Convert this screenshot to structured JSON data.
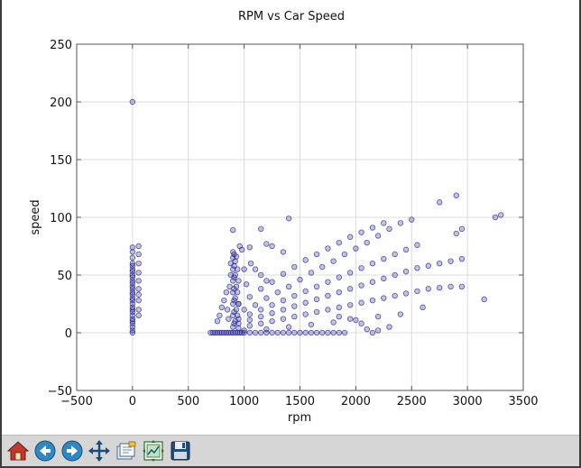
{
  "chart_data": {
    "type": "scatter",
    "title": "RPM vs Car Speed",
    "xlabel": "rpm",
    "ylabel": "speed",
    "xlim": [
      -500,
      3500
    ],
    "ylim": [
      -50,
      250
    ],
    "xticks": [
      -500,
      0,
      500,
      1000,
      1500,
      2000,
      2500,
      3000,
      3500
    ],
    "yticks": [
      -50,
      0,
      50,
      100,
      150,
      200,
      250
    ],
    "xtick_labels": [
      "−500",
      "0",
      "500",
      "1000",
      "1500",
      "2000",
      "2500",
      "3000",
      "3500"
    ],
    "ytick_labels": [
      "−50",
      "0",
      "50",
      "100",
      "150",
      "200",
      "250"
    ],
    "grid": true,
    "marker_color": "#3333cc",
    "marker_edge": "#1a1a66",
    "marker_alpha": 0.3,
    "series": [
      {
        "points": [
          [
            0,
            200
          ],
          [
            0,
            0
          ],
          [
            0,
            5
          ],
          [
            0,
            10
          ],
          [
            0,
            15
          ],
          [
            0,
            20
          ],
          [
            0,
            25
          ],
          [
            0,
            30
          ],
          [
            0,
            35
          ],
          [
            0,
            40
          ],
          [
            0,
            45
          ],
          [
            0,
            50
          ],
          [
            0,
            55
          ],
          [
            0,
            60
          ],
          [
            0,
            65
          ],
          [
            0,
            70
          ],
          [
            0,
            74
          ],
          [
            0,
            2
          ],
          [
            0,
            8
          ],
          [
            0,
            12
          ],
          [
            0,
            18
          ],
          [
            0,
            22
          ],
          [
            0,
            28
          ],
          [
            0,
            33
          ],
          [
            0,
            38
          ],
          [
            0,
            43
          ],
          [
            0,
            48
          ],
          [
            0,
            53
          ],
          [
            0,
            58
          ],
          [
            55,
            75
          ],
          [
            55,
            68
          ],
          [
            55,
            60
          ],
          [
            55,
            52
          ],
          [
            55,
            45
          ],
          [
            55,
            38
          ],
          [
            55,
            33
          ],
          [
            55,
            28
          ],
          [
            55,
            20
          ],
          [
            55,
            15
          ],
          [
            700,
            0
          ],
          [
            720,
            0
          ],
          [
            740,
            0
          ],
          [
            760,
            0
          ],
          [
            780,
            0
          ],
          [
            800,
            0
          ],
          [
            820,
            0
          ],
          [
            840,
            0
          ],
          [
            860,
            0
          ],
          [
            880,
            0
          ],
          [
            900,
            0
          ],
          [
            920,
            0
          ],
          [
            940,
            0
          ],
          [
            960,
            0
          ],
          [
            980,
            0
          ],
          [
            1000,
            0
          ],
          [
            1050,
            0
          ],
          [
            1100,
            0
          ],
          [
            1150,
            0
          ],
          [
            1200,
            0
          ],
          [
            1250,
            0
          ],
          [
            1300,
            0
          ],
          [
            1350,
            0
          ],
          [
            1400,
            0
          ],
          [
            1450,
            0
          ],
          [
            1500,
            0
          ],
          [
            1550,
            0
          ],
          [
            1600,
            0
          ],
          [
            1650,
            0
          ],
          [
            1700,
            0
          ],
          [
            1750,
            0
          ],
          [
            1800,
            0
          ],
          [
            1850,
            0
          ],
          [
            1900,
            0
          ],
          [
            760,
            10
          ],
          [
            780,
            15
          ],
          [
            800,
            22
          ],
          [
            820,
            28
          ],
          [
            840,
            35
          ],
          [
            850,
            20
          ],
          [
            860,
            12
          ],
          [
            870,
            40
          ],
          [
            880,
            50
          ],
          [
            880,
            60
          ],
          [
            900,
            5
          ],
          [
            900,
            15
          ],
          [
            900,
            25
          ],
          [
            900,
            35
          ],
          [
            900,
            45
          ],
          [
            900,
            55
          ],
          [
            900,
            65
          ],
          [
            900,
            70
          ],
          [
            900,
            89
          ],
          [
            910,
            8
          ],
          [
            910,
            18
          ],
          [
            910,
            28
          ],
          [
            910,
            38
          ],
          [
            910,
            48
          ],
          [
            910,
            58
          ],
          [
            910,
            68
          ],
          [
            920,
            10
          ],
          [
            920,
            30
          ],
          [
            920,
            50
          ],
          [
            920,
            62
          ],
          [
            930,
            20
          ],
          [
            930,
            40
          ],
          [
            930,
            66
          ],
          [
            940,
            15
          ],
          [
            940,
            35
          ],
          [
            940,
            55
          ],
          [
            950,
            25
          ],
          [
            950,
            45
          ],
          [
            960,
            75
          ],
          [
            980,
            72
          ],
          [
            1050,
            74
          ],
          [
            1000,
            55
          ],
          [
            1020,
            42
          ],
          [
            1060,
            60
          ],
          [
            1100,
            55
          ],
          [
            1150,
            50
          ],
          [
            1200,
            45
          ],
          [
            950,
            12
          ],
          [
            1050,
            16
          ],
          [
            1150,
            20
          ],
          [
            1250,
            24
          ],
          [
            1350,
            28
          ],
          [
            1450,
            32
          ],
          [
            1550,
            36
          ],
          [
            1650,
            40
          ],
          [
            1750,
            44
          ],
          [
            1850,
            48
          ],
          [
            1950,
            52
          ],
          [
            2050,
            56
          ],
          [
            2150,
            60
          ],
          [
            2250,
            64
          ],
          [
            2350,
            68
          ],
          [
            2450,
            72
          ],
          [
            2550,
            76
          ],
          [
            1000,
            20
          ],
          [
            1100,
            24
          ],
          [
            1200,
            30
          ],
          [
            1300,
            35
          ],
          [
            1400,
            40
          ],
          [
            1500,
            46
          ],
          [
            1600,
            52
          ],
          [
            1700,
            57
          ],
          [
            1800,
            62
          ],
          [
            1900,
            68
          ],
          [
            2000,
            73
          ],
          [
            2100,
            78
          ],
          [
            2200,
            84
          ],
          [
            2300,
            90
          ],
          [
            2400,
            95
          ],
          [
            2500,
            98
          ],
          [
            950,
            25
          ],
          [
            1050,
            31
          ],
          [
            1150,
            38
          ],
          [
            1250,
            44
          ],
          [
            1350,
            51
          ],
          [
            1450,
            57
          ],
          [
            1550,
            63
          ],
          [
            1650,
            68
          ],
          [
            1750,
            73
          ],
          [
            1850,
            78
          ],
          [
            1950,
            83
          ],
          [
            2050,
            87
          ],
          [
            2150,
            91
          ],
          [
            2250,
            95
          ],
          [
            950,
            8
          ],
          [
            1050,
            11
          ],
          [
            1150,
            14
          ],
          [
            1250,
            17
          ],
          [
            1350,
            20
          ],
          [
            1450,
            23
          ],
          [
            1550,
            26
          ],
          [
            1650,
            29
          ],
          [
            1750,
            32
          ],
          [
            1850,
            35
          ],
          [
            1950,
            38
          ],
          [
            2050,
            41
          ],
          [
            2150,
            44
          ],
          [
            2250,
            47
          ],
          [
            2350,
            50
          ],
          [
            2450,
            53
          ],
          [
            2550,
            56
          ],
          [
            2650,
            58
          ],
          [
            2750,
            60
          ],
          [
            2850,
            62
          ],
          [
            950,
            4
          ],
          [
            1050,
            6
          ],
          [
            1150,
            8
          ],
          [
            1250,
            10
          ],
          [
            1350,
            12
          ],
          [
            1450,
            14
          ],
          [
            1550,
            16
          ],
          [
            1650,
            18
          ],
          [
            1750,
            20
          ],
          [
            1850,
            22
          ],
          [
            1950,
            24
          ],
          [
            2050,
            26
          ],
          [
            2150,
            28
          ],
          [
            2250,
            30
          ],
          [
            2350,
            32
          ],
          [
            2450,
            34
          ],
          [
            2550,
            36
          ],
          [
            2650,
            38
          ],
          [
            2750,
            39
          ],
          [
            2850,
            40
          ],
          [
            2950,
            40
          ],
          [
            1000,
            2
          ],
          [
            1200,
            3
          ],
          [
            1400,
            5
          ],
          [
            1600,
            7
          ],
          [
            1800,
            9
          ],
          [
            2000,
            11
          ],
          [
            2200,
            14
          ],
          [
            2400,
            16
          ],
          [
            2750,
            113
          ],
          [
            2900,
            119
          ],
          [
            3250,
            100
          ],
          [
            3300,
            102
          ],
          [
            2950,
            90
          ],
          [
            2900,
            86
          ],
          [
            2600,
            22
          ],
          [
            2950,
            64
          ],
          [
            3150,
            29
          ],
          [
            1400,
            99
          ],
          [
            1150,
            90
          ],
          [
            1200,
            77
          ],
          [
            1250,
            75
          ],
          [
            1350,
            70
          ],
          [
            2100,
            3
          ],
          [
            2150,
            0
          ],
          [
            2200,
            2
          ],
          [
            2300,
            5
          ],
          [
            2050,
            8
          ],
          [
            1950,
            12
          ],
          [
            1850,
            14
          ]
        ]
      }
    ]
  },
  "toolbar": {
    "buttons": [
      {
        "icon": "home-icon"
      },
      {
        "icon": "back-icon"
      },
      {
        "icon": "forward-icon"
      },
      {
        "icon": "pan-icon"
      },
      {
        "icon": "zoom-icon"
      },
      {
        "icon": "subplots-icon"
      },
      {
        "icon": "save-icon"
      }
    ]
  }
}
